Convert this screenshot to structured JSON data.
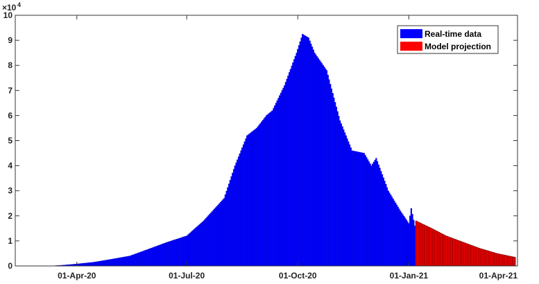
{
  "chart_data": {
    "type": "bar",
    "title": "",
    "xlabel": "",
    "ylabel": "",
    "y_multiplier": "×10",
    "y_exponent": "4",
    "ylim": [
      0,
      100000
    ],
    "y_ticks": [
      0,
      10000,
      20000,
      30000,
      40000,
      50000,
      60000,
      70000,
      80000,
      90000,
      100000
    ],
    "y_tick_labels": [
      "0",
      "1",
      "2",
      "3",
      "4",
      "5",
      "6",
      "7",
      "8",
      "9",
      "10"
    ],
    "x_range": [
      "2020-02-10",
      "2021-04-01"
    ],
    "x_ticks": [
      "2020-04-01",
      "2020-07-01",
      "2020-10-01",
      "2021-01-01",
      "2021-04-01"
    ],
    "x_tick_labels": [
      "01-Apr-20",
      "01-Jul-20",
      "01-Oct-20",
      "01-Jan-21",
      "01-Apr-21"
    ],
    "legend_position": "top-right",
    "series": [
      {
        "name": "Real-time data",
        "color": "#0000ff",
        "points": [
          [
            "2020-03-10",
            0
          ],
          [
            "2020-03-20",
            300
          ],
          [
            "2020-04-01",
            800
          ],
          [
            "2020-04-15",
            1500
          ],
          [
            "2020-05-01",
            2800
          ],
          [
            "2020-05-15",
            4000
          ],
          [
            "2020-06-01",
            7000
          ],
          [
            "2020-06-15",
            9500
          ],
          [
            "2020-07-01",
            12000
          ],
          [
            "2020-07-15",
            18000
          ],
          [
            "2020-08-01",
            27000
          ],
          [
            "2020-08-10",
            40000
          ],
          [
            "2020-08-20",
            52000
          ],
          [
            "2020-08-28",
            55000
          ],
          [
            "2020-09-05",
            60000
          ],
          [
            "2020-09-10",
            62000
          ],
          [
            "2020-09-20",
            72000
          ],
          [
            "2020-09-30",
            85000
          ],
          [
            "2020-10-05",
            92500
          ],
          [
            "2020-10-10",
            91000
          ],
          [
            "2020-10-15",
            85000
          ],
          [
            "2020-10-25",
            78000
          ],
          [
            "2020-11-05",
            58000
          ],
          [
            "2020-11-15",
            46000
          ],
          [
            "2020-11-25",
            45000
          ],
          [
            "2020-12-01",
            40000
          ],
          [
            "2020-12-05",
            43000
          ],
          [
            "2020-12-15",
            30000
          ],
          [
            "2020-12-25",
            22000
          ],
          [
            "2021-01-01",
            17000
          ],
          [
            "2021-01-03",
            23000
          ],
          [
            "2021-01-06",
            16000
          ]
        ]
      },
      {
        "name": "Model projection",
        "color": "#ff0000",
        "points": [
          [
            "2021-01-07",
            18000
          ],
          [
            "2021-01-20",
            15000
          ],
          [
            "2021-02-01",
            12000
          ],
          [
            "2021-02-15",
            9500
          ],
          [
            "2021-03-01",
            7000
          ],
          [
            "2021-03-15",
            5000
          ],
          [
            "2021-03-30",
            3500
          ]
        ]
      }
    ]
  }
}
